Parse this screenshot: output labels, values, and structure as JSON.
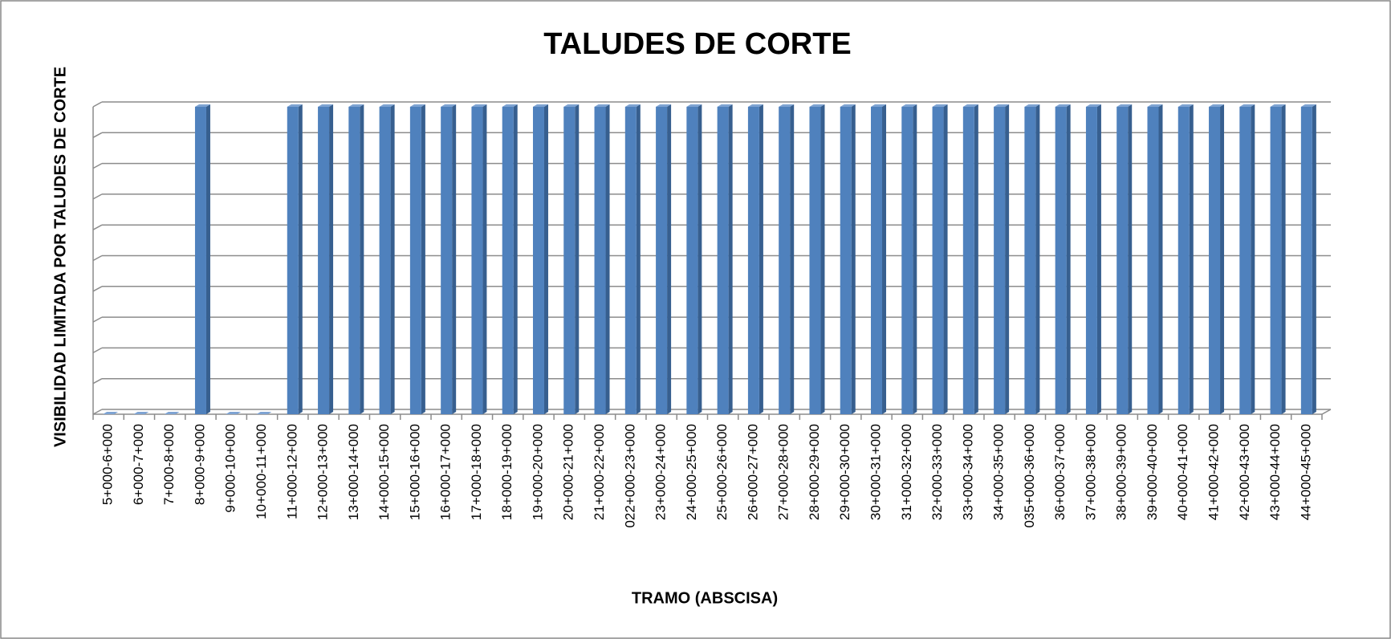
{
  "chart_data": {
    "type": "bar",
    "title": "TALUDES DE CORTE",
    "x_label": "TRAMO (ABSCISA)",
    "y_label": "VISIBILIDAD LIMITADA POR TALUDES DE CORTE",
    "categories": [
      "5+000-6+000",
      "6+000-7+000",
      "7+000-8+000",
      "8+000-9+000",
      "9+000-10+000",
      "10+000-11+000",
      "11+000-12+000",
      "12+000-13+000",
      "13+000-14+000",
      "14+000-15+000",
      "15+000-16+000",
      "16+000-17+000",
      "17+000-18+000",
      "18+000-19+000",
      "19+000-20+000",
      "20+000-21+000",
      "21+000-22+000",
      "022+000-23+000",
      "23+000-24+000",
      "24+000-25+000",
      "25+000-26+000",
      "26+000-27+000",
      "27+000-28+000",
      "28+000-29+000",
      "29+000-30+000",
      "30+000-31+000",
      "31+000-32+000",
      "32+000-33+000",
      "33+000-34+000",
      "34+000-35+000",
      "035+000-36+000",
      "36+000-37+000",
      "37+000-38+000",
      "38+000-39+000",
      "39+000-40+000",
      "40+000-41+000",
      "41+000-42+000",
      "42+000-43+000",
      "43+000-44+000",
      "44+000-45+000"
    ],
    "values": [
      0,
      0,
      0,
      1,
      0,
      0,
      1,
      1,
      1,
      1,
      1,
      1,
      1,
      1,
      1,
      1,
      1,
      1,
      1,
      1,
      1,
      1,
      1,
      1,
      1,
      1,
      1,
      1,
      1,
      1,
      1,
      1,
      1,
      1,
      1,
      1,
      1,
      1,
      1,
      1
    ],
    "color": "#4f81bd",
    "ylim": [
      0,
      1
    ],
    "yticks": [
      0,
      0.1,
      0.2,
      0.3,
      0.4,
      0.5,
      0.6,
      0.7,
      0.8,
      0.9,
      1
    ],
    "grid": true
  }
}
